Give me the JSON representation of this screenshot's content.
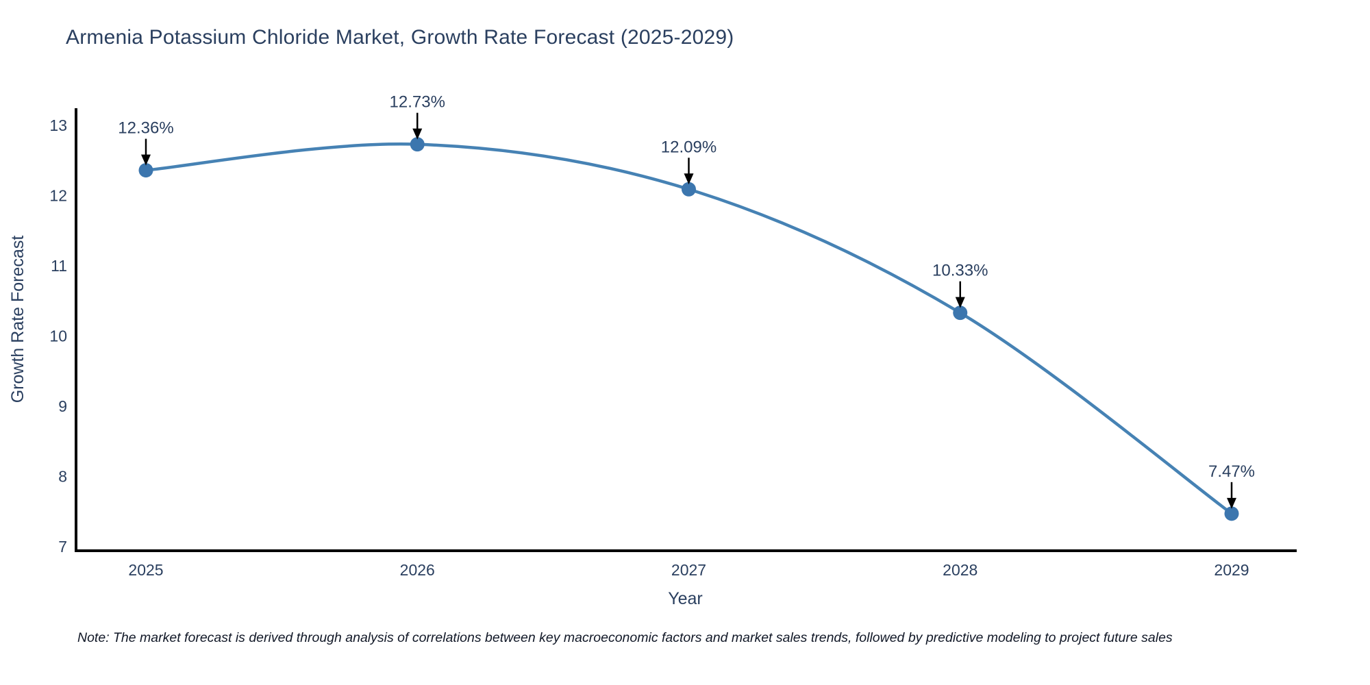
{
  "title": "Armenia Potassium Chloride Market, Growth Rate Forecast (2025-2029)",
  "note": "Note: The market forecast is derived through analysis of correlations between key macroeconomic factors and market sales trends, followed by predictive modeling to project future sales",
  "chart_data": {
    "type": "line",
    "title": "Armenia Potassium Chloride Market, Growth Rate Forecast (2025-2029)",
    "xlabel": "Year",
    "ylabel": "Growth Rate Forecast",
    "x": [
      2025,
      2026,
      2027,
      2028,
      2029
    ],
    "values": [
      12.36,
      12.73,
      12.09,
      10.33,
      7.47
    ],
    "point_labels": [
      "12.36%",
      "12.73%",
      "12.09%",
      "10.33%",
      "7.47%"
    ],
    "xticks": [
      "2025",
      "2026",
      "2027",
      "2028",
      "2029"
    ],
    "yticks": [
      7,
      8,
      9,
      10,
      11,
      12,
      13
    ],
    "ylim": [
      7,
      13.2
    ],
    "xlim": [
      2024.74,
      2029.24
    ],
    "grid": false,
    "legend": "none",
    "line_shape": "spline",
    "annotation_style": "arrow-down-to-point",
    "colors": {
      "line": "#4682b4",
      "marker": "#3c76ae",
      "axis_line": "#000000",
      "tick_text": "#2a3f5f",
      "axis_title_text": "#2a3f5f",
      "annotation_text": "#2a3f5f",
      "annotation_arrow": "#000000",
      "title_text": "#2a3f5f",
      "background": "#ffffff"
    }
  }
}
